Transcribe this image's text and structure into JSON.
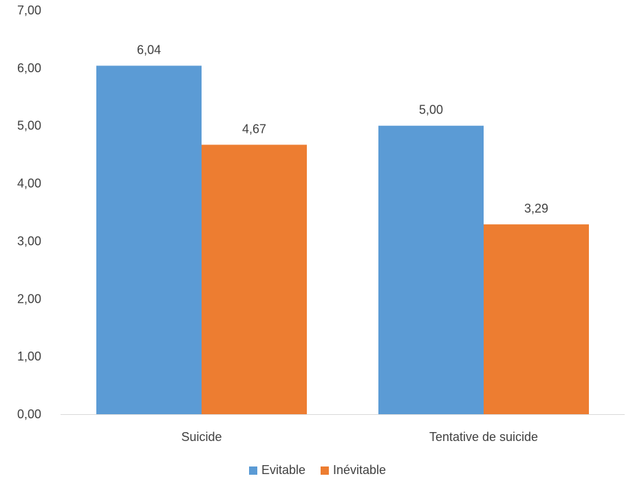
{
  "chart_data": {
    "type": "bar",
    "categories": [
      "Suicide",
      "Tentative de suicide"
    ],
    "series": [
      {
        "name": "Evitable",
        "values": [
          6.04,
          5.0
        ],
        "labels": [
          "6,04",
          "5,00"
        ],
        "color": "#5B9BD5"
      },
      {
        "name": "Inévitable",
        "values": [
          4.67,
          3.29
        ],
        "labels": [
          "4,67",
          "3,29"
        ],
        "color": "#ED7D31"
      }
    ],
    "ylim": [
      0,
      7
    ],
    "yticks": [
      0,
      1,
      2,
      3,
      4,
      5,
      6,
      7
    ],
    "ytick_labels": [
      "0,00",
      "1,00",
      "2,00",
      "3,00",
      "4,00",
      "5,00",
      "6,00",
      "7,00"
    ],
    "grid": false,
    "legend": "bottom-center",
    "title": "",
    "xlabel": "",
    "ylabel": ""
  }
}
